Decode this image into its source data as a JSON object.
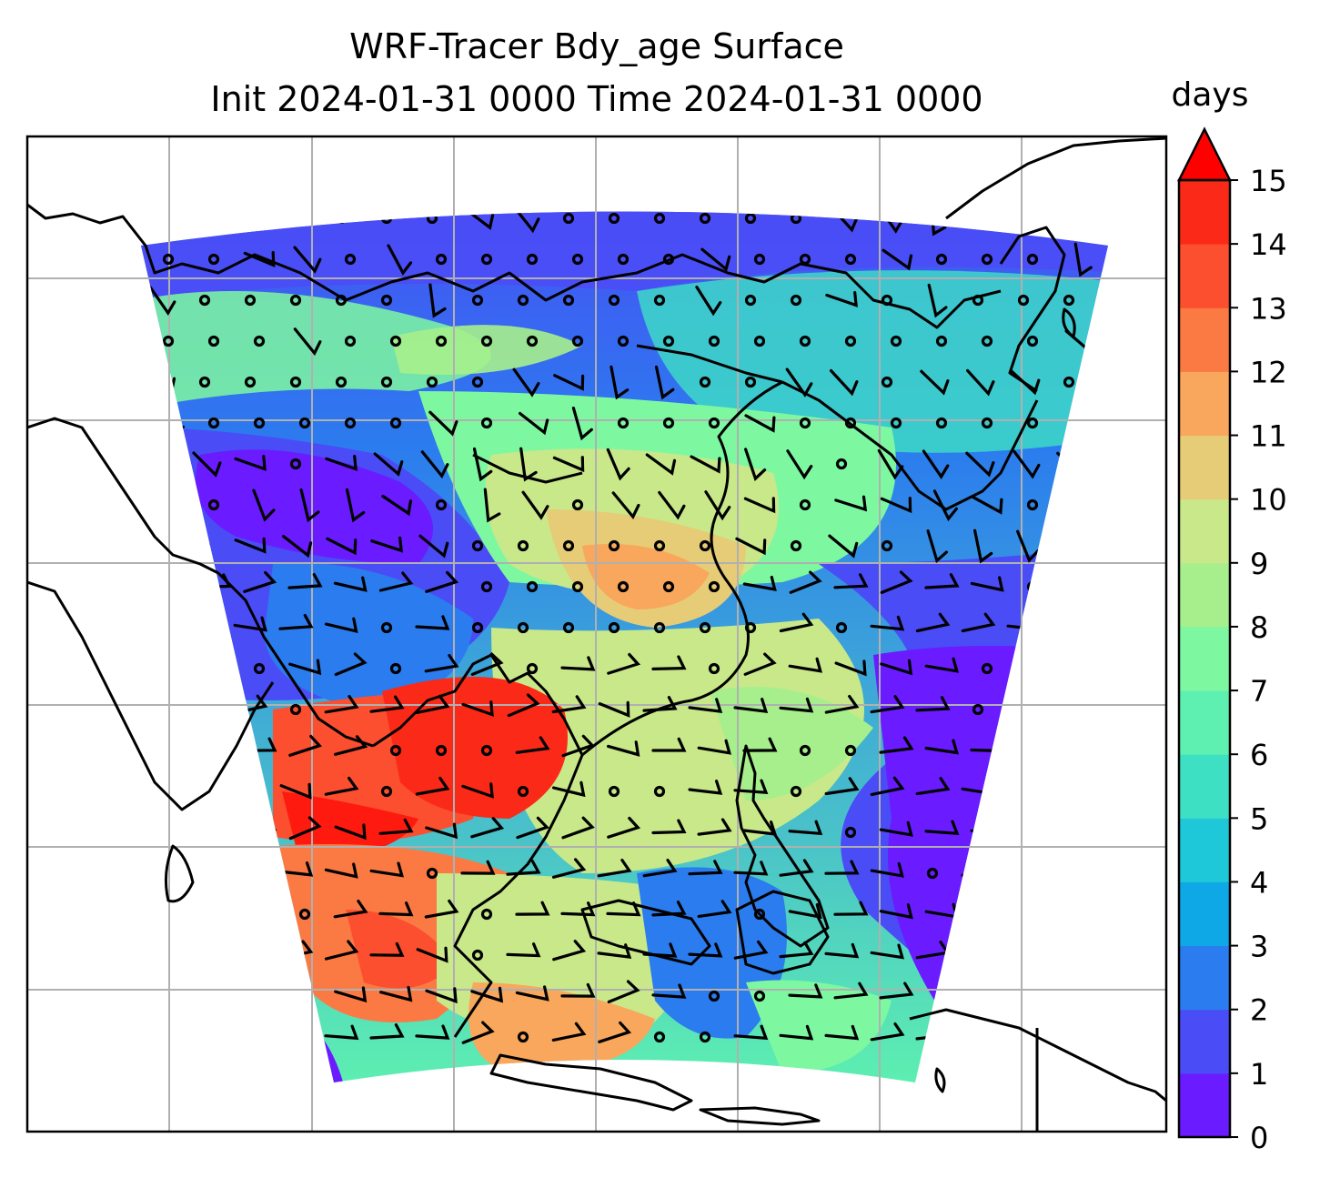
{
  "chart_data": {
    "type": "heatmap",
    "title": "WRF-Tracer Bdy_age Surface",
    "subtitle": "Init 2024-01-31 0000 Time 2024-01-31 0000",
    "map": {
      "grid": true,
      "coastlines": true,
      "overlay": "wind barbs",
      "projection": "Lambert conformal"
    },
    "colorbar": {
      "label": "days",
      "levels": [
        0,
        1,
        2,
        3,
        4,
        5,
        6,
        7,
        8,
        9,
        10,
        11,
        12,
        13,
        14,
        15
      ],
      "tick_labels": [
        "0",
        "1",
        "2",
        "3",
        "4",
        "5",
        "6",
        "7",
        "8",
        "9",
        "10",
        "11",
        "12",
        "13",
        "14",
        "15"
      ],
      "extend": "max",
      "colors": [
        "#6a1bff",
        "#4a4cf6",
        "#2b7cee",
        "#0ea8e6",
        "#1ec8d8",
        "#3ee0c4",
        "#5ef0b0",
        "#7ef8a0",
        "#a6ef8c",
        "#c8e88a",
        "#e6cc76",
        "#f9a75c",
        "#fb7a44",
        "#fc4f30",
        "#fb2a18"
      ],
      "extend_color": "#ff0000",
      "cmap": "rainbow"
    }
  }
}
